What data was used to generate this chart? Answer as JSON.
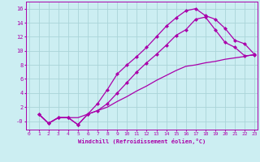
{
  "xlabel": "Windchill (Refroidissement éolien,°C)",
  "bg_color": "#cceef2",
  "grid_color": "#aad4d8",
  "line_color": "#aa00aa",
  "xlim": [
    -0.3,
    23.3
  ],
  "ylim": [
    -1.2,
    17.0
  ],
  "xticks": [
    0,
    1,
    2,
    3,
    4,
    5,
    6,
    7,
    8,
    9,
    10,
    11,
    12,
    13,
    14,
    15,
    16,
    17,
    18,
    19,
    20,
    21,
    22,
    23
  ],
  "yticks": [
    0,
    2,
    4,
    6,
    8,
    10,
    12,
    14,
    16
  ],
  "ytick_labels": [
    "-0",
    "2",
    "4",
    "6",
    "8",
    "10",
    "12",
    "14",
    "16"
  ],
  "line1_x": [
    1,
    2,
    3,
    4,
    5,
    6,
    7,
    8,
    9,
    10,
    11,
    12,
    13,
    14,
    15,
    16,
    17,
    18,
    19,
    20,
    21,
    22,
    23
  ],
  "line1_y": [
    1.0,
    -0.3,
    0.5,
    0.5,
    0.5,
    1.0,
    1.5,
    2.0,
    2.8,
    3.5,
    4.3,
    5.0,
    5.8,
    6.5,
    7.2,
    7.8,
    8.0,
    8.3,
    8.5,
    8.8,
    9.0,
    9.2,
    9.5
  ],
  "line2_x": [
    1,
    2,
    3,
    4,
    5,
    6,
    7,
    8,
    9,
    10,
    11,
    12,
    13,
    14,
    15,
    16,
    17,
    18,
    19,
    20,
    21,
    22,
    23
  ],
  "line2_y": [
    1.0,
    -0.3,
    0.5,
    0.5,
    -0.5,
    1.0,
    2.5,
    4.5,
    6.7,
    8.0,
    9.2,
    10.5,
    12.0,
    13.5,
    14.7,
    15.7,
    16.0,
    15.0,
    14.5,
    13.2,
    11.5,
    11.0,
    9.5
  ],
  "line3_x": [
    1,
    2,
    3,
    4,
    5,
    6,
    7,
    8,
    9,
    10,
    11,
    12,
    13,
    14,
    15,
    16,
    17,
    18,
    19,
    20,
    21,
    22,
    23
  ],
  "line3_y": [
    1.0,
    -0.3,
    0.5,
    0.5,
    -0.5,
    1.0,
    1.5,
    2.5,
    4.0,
    5.5,
    7.0,
    8.3,
    9.5,
    10.8,
    12.2,
    13.0,
    14.5,
    14.8,
    13.0,
    11.2,
    10.5,
    9.3,
    9.4
  ]
}
